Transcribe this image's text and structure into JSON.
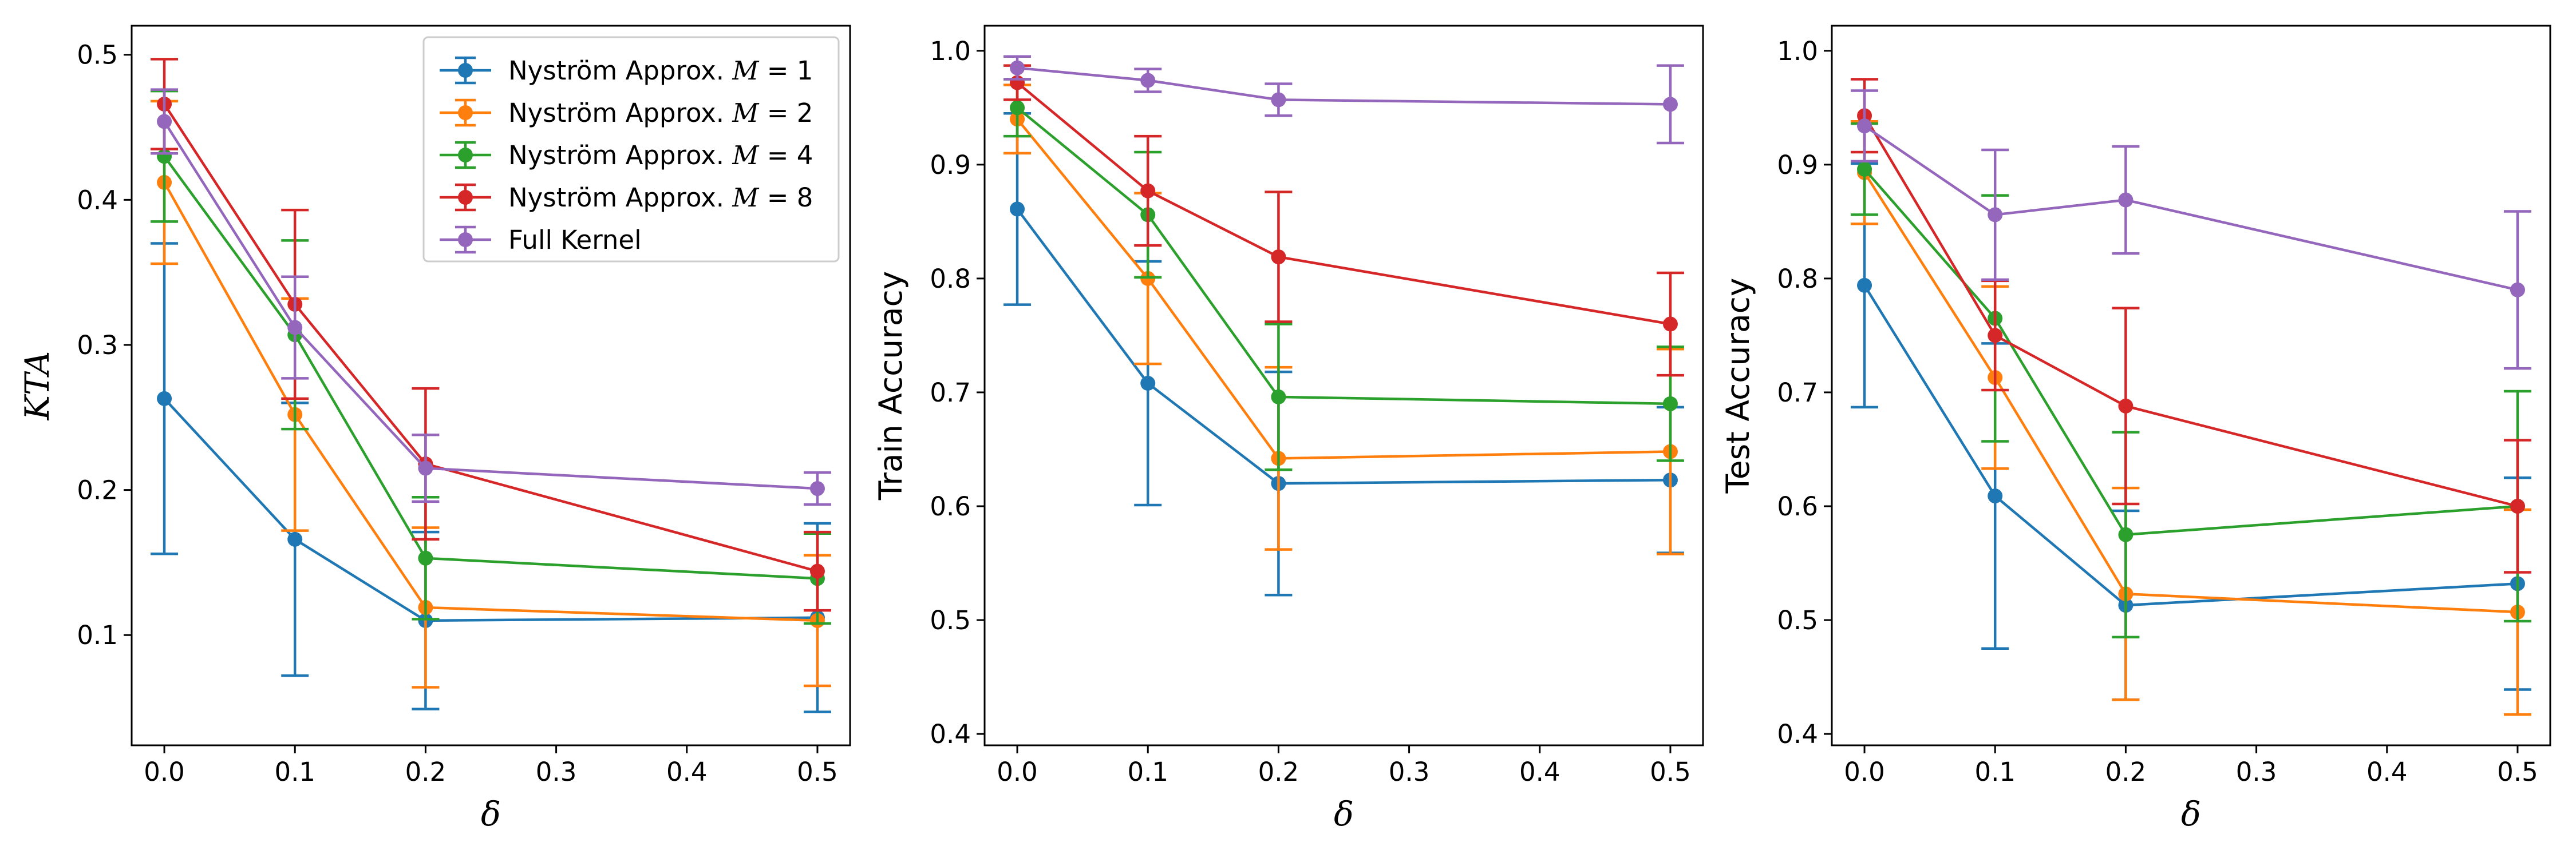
{
  "chart_data": [
    {
      "type": "line",
      "title": "",
      "xlabel": "δ",
      "ylabel": "KTA",
      "ylabel_style": "math",
      "xlim": [
        -0.025,
        0.525
      ],
      "ylim": [
        0.024,
        0.52
      ],
      "xticks": [
        0.0,
        0.1,
        0.2,
        0.3,
        0.4,
        0.5
      ],
      "xtick_labels": [
        "0.0",
        "0.1",
        "0.2",
        "0.3",
        "0.4",
        "0.5"
      ],
      "yticks": [
        0.1,
        0.2,
        0.3,
        0.4,
        0.5
      ],
      "ytick_labels": [
        "0.1",
        "0.2",
        "0.3",
        "0.4",
        "0.5"
      ],
      "x": [
        0.0,
        0.1,
        0.2,
        0.5
      ],
      "series": [
        {
          "name": "Nyström Approx. M = 1",
          "values": [
            0.263,
            0.166,
            0.11,
            0.112
          ],
          "errors": [
            0.107,
            0.094,
            0.061,
            0.065
          ]
        },
        {
          "name": "Nyström Approx. M = 2",
          "values": [
            0.412,
            0.252,
            0.119,
            0.11
          ],
          "errors": [
            0.056,
            0.08,
            0.055,
            0.045
          ]
        },
        {
          "name": "Nyström Approx. M = 4",
          "values": [
            0.43,
            0.307,
            0.153,
            0.139
          ],
          "errors": [
            0.045,
            0.065,
            0.042,
            0.031
          ]
        },
        {
          "name": "Nyström Approx. M = 8",
          "values": [
            0.466,
            0.328,
            0.218,
            0.144
          ],
          "errors": [
            0.031,
            0.065,
            0.052,
            0.027
          ]
        },
        {
          "name": "Full Kernel",
          "values": [
            0.454,
            0.312,
            0.215,
            0.201
          ],
          "errors": [
            0.022,
            0.035,
            0.023,
            0.011
          ]
        }
      ],
      "legend": {
        "placement": "top-right",
        "entries": [
          {
            "prefix": "Nyström Approx. ",
            "math": "M",
            "suffix": " = 1"
          },
          {
            "prefix": "Nyström Approx. ",
            "math": "M",
            "suffix": " = 2"
          },
          {
            "prefix": "Nyström Approx. ",
            "math": "M",
            "suffix": " = 4"
          },
          {
            "prefix": "Nyström Approx. ",
            "math": "M",
            "suffix": " = 8"
          },
          {
            "prefix": "Full Kernel",
            "math": "",
            "suffix": ""
          }
        ]
      }
    },
    {
      "type": "line",
      "title": "",
      "xlabel": "δ",
      "ylabel": "Train Accuracy",
      "ylabel_style": "plain",
      "xlim": [
        -0.025,
        0.525
      ],
      "ylim": [
        0.39,
        1.022
      ],
      "xticks": [
        0.0,
        0.1,
        0.2,
        0.3,
        0.4,
        0.5
      ],
      "xtick_labels": [
        "0.0",
        "0.1",
        "0.2",
        "0.3",
        "0.4",
        "0.5"
      ],
      "yticks": [
        0.4,
        0.5,
        0.6,
        0.7,
        0.8,
        0.9,
        1.0
      ],
      "ytick_labels": [
        "0.4",
        "0.5",
        "0.6",
        "0.7",
        "0.8",
        "0.9",
        "1.0"
      ],
      "x": [
        0.0,
        0.1,
        0.2,
        0.5
      ],
      "series": [
        {
          "name": "Nyström Approx. M = 1",
          "values": [
            0.861,
            0.708,
            0.62,
            0.623
          ],
          "errors": [
            0.084,
            0.107,
            0.098,
            0.064
          ]
        },
        {
          "name": "Nyström Approx. M = 2",
          "values": [
            0.94,
            0.8,
            0.642,
            0.648
          ],
          "errors": [
            0.03,
            0.075,
            0.08,
            0.09
          ]
        },
        {
          "name": "Nyström Approx. M = 4",
          "values": [
            0.95,
            0.856,
            0.696,
            0.69
          ],
          "errors": [
            0.025,
            0.055,
            0.064,
            0.05
          ]
        },
        {
          "name": "Nyström Approx. M = 8",
          "values": [
            0.972,
            0.877,
            0.819,
            0.76
          ],
          "errors": [
            0.015,
            0.048,
            0.057,
            0.045
          ]
        },
        {
          "name": "Full Kernel",
          "values": [
            0.985,
            0.974,
            0.957,
            0.953
          ],
          "errors": [
            0.01,
            0.01,
            0.014,
            0.034
          ]
        }
      ]
    },
    {
      "type": "line",
      "title": "",
      "xlabel": "δ",
      "ylabel": "Test Accuracy",
      "ylabel_style": "plain",
      "xlim": [
        -0.025,
        0.525
      ],
      "ylim": [
        0.39,
        1.022
      ],
      "xticks": [
        0.0,
        0.1,
        0.2,
        0.3,
        0.4,
        0.5
      ],
      "xtick_labels": [
        "0.0",
        "0.1",
        "0.2",
        "0.3",
        "0.4",
        "0.5"
      ],
      "yticks": [
        0.4,
        0.5,
        0.6,
        0.7,
        0.8,
        0.9,
        1.0
      ],
      "ytick_labels": [
        "0.4",
        "0.5",
        "0.6",
        "0.7",
        "0.8",
        "0.9",
        "1.0"
      ],
      "x": [
        0.0,
        0.1,
        0.2,
        0.5
      ],
      "series": [
        {
          "name": "Nyström Approx. M = 1",
          "values": [
            0.794,
            0.609,
            0.513,
            0.532
          ],
          "errors": [
            0.107,
            0.134,
            0.083,
            0.093
          ]
        },
        {
          "name": "Nyström Approx. M = 2",
          "values": [
            0.893,
            0.713,
            0.523,
            0.507
          ],
          "errors": [
            0.045,
            0.08,
            0.093,
            0.09
          ]
        },
        {
          "name": "Nyström Approx. M = 4",
          "values": [
            0.896,
            0.765,
            0.575,
            0.6
          ],
          "errors": [
            0.04,
            0.108,
            0.09,
            0.101
          ]
        },
        {
          "name": "Nyström Approx. M = 8",
          "values": [
            0.943,
            0.75,
            0.688,
            0.6
          ],
          "errors": [
            0.032,
            0.048,
            0.086,
            0.058
          ]
        },
        {
          "name": "Full Kernel",
          "values": [
            0.934,
            0.856,
            0.869,
            0.79
          ],
          "errors": [
            0.031,
            0.057,
            0.047,
            0.069
          ]
        }
      ]
    }
  ],
  "colors": {
    "series": [
      "#1f77b4",
      "#ff7f0e",
      "#2ca02c",
      "#d62728",
      "#9467bd"
    ],
    "axes": "#000000",
    "background": "#ffffff"
  }
}
